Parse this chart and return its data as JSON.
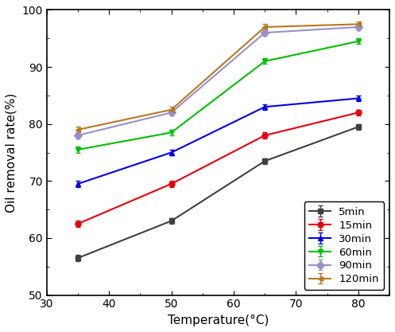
{
  "x": [
    35,
    50,
    65,
    80
  ],
  "series": [
    {
      "label": "5min",
      "values": [
        56.5,
        63.0,
        73.5,
        79.5
      ],
      "errors": [
        0.5,
        0.5,
        0.5,
        0.5
      ],
      "color": "#404040",
      "marker": "s",
      "linestyle": "-"
    },
    {
      "label": "15min",
      "values": [
        62.5,
        69.5,
        78.0,
        82.0
      ],
      "errors": [
        0.5,
        0.5,
        0.5,
        0.5
      ],
      "color": "#e8000e",
      "marker": "o",
      "linestyle": "-"
    },
    {
      "label": "30min",
      "values": [
        69.5,
        75.0,
        83.0,
        84.5
      ],
      "errors": [
        0.5,
        0.5,
        0.5,
        0.5
      ],
      "color": "#0000e8",
      "marker": "^",
      "linestyle": "-"
    },
    {
      "label": "60min",
      "values": [
        75.5,
        78.5,
        91.0,
        94.5
      ],
      "errors": [
        0.5,
        0.5,
        0.5,
        0.5
      ],
      "color": "#00c000",
      "marker": "v",
      "linestyle": "-"
    },
    {
      "label": "90min",
      "values": [
        78.0,
        82.0,
        96.0,
        97.0
      ],
      "errors": [
        0.5,
        0.5,
        0.5,
        0.5
      ],
      "color": "#9b8fc8",
      "marker": "D",
      "linestyle": "-"
    },
    {
      "label": "120min",
      "values": [
        79.0,
        82.5,
        97.0,
        97.5
      ],
      "errors": [
        0.5,
        0.5,
        0.5,
        0.5
      ],
      "color": "#b87820",
      "marker": "<",
      "linestyle": "-"
    }
  ],
  "xlabel": "Temperature(°C)",
  "ylabel": "Oil removal rate(%)",
  "xlim": [
    30,
    85
  ],
  "ylim": [
    50,
    100
  ],
  "xticks": [
    30,
    40,
    50,
    60,
    70,
    80
  ],
  "yticks": [
    50,
    60,
    70,
    80,
    90,
    100
  ],
  "legend_loc": "lower right",
  "figsize": [
    4.97,
    4.17
  ],
  "dpi": 100
}
